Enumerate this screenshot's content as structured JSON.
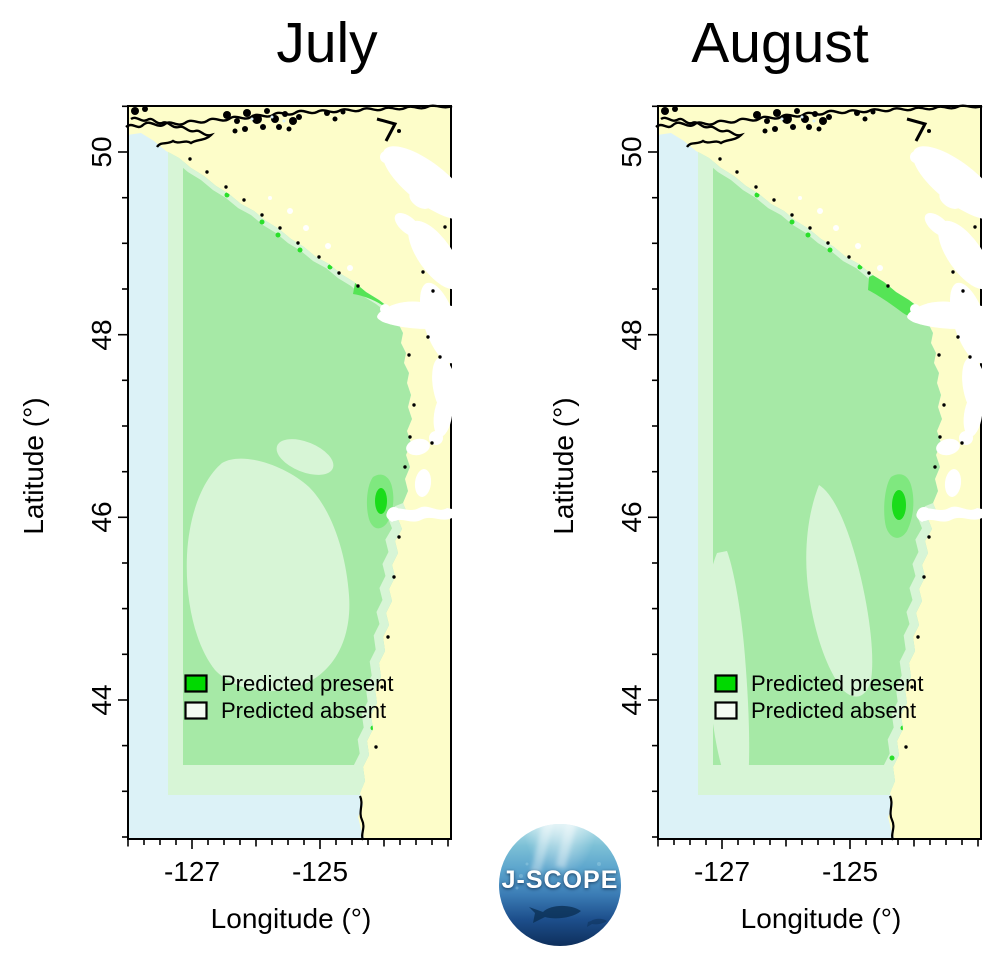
{
  "figure": {
    "panels": [
      {
        "title": "July"
      },
      {
        "title": "August"
      }
    ],
    "axes": {
      "x": {
        "label": "Longitude (°)",
        "tick_labels": [
          "-127",
          "-125"
        ],
        "tick_values": [
          -127,
          -125
        ],
        "minor_tick_step_deg": 0.25,
        "range_deg": [
          -128,
          -122.9
        ]
      },
      "y": {
        "label": "Latitude (°)",
        "tick_labels": [
          "50",
          "48",
          "46",
          "44"
        ],
        "tick_values": [
          50,
          48,
          46,
          44
        ],
        "minor_tick_step_deg": 0.5,
        "range_deg": [
          42.5,
          50.5
        ]
      }
    },
    "legend": {
      "items": [
        {
          "label": "Predicted present",
          "color": "#00D900"
        },
        {
          "label": "Predicted absent",
          "color": "#F4FBF2"
        }
      ]
    },
    "logo": {
      "text": "J-SCOPE"
    },
    "map_colors": {
      "land": "#FDFDC9",
      "border_sea": "#DCF2F7",
      "predicted_present": "#A6E9A6",
      "predicted_present_light": "#D7F5D6",
      "predicted_present_bright": "#55E455",
      "coastline": "#000000"
    }
  }
}
